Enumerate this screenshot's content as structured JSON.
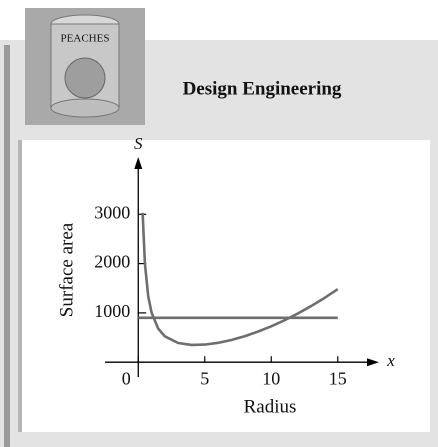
{
  "header": {
    "title": "Design Engineering",
    "can_label": "PEACHES"
  },
  "chart_data": {
    "type": "line",
    "x_label": "Radius",
    "y_label": "Surface area",
    "x_axis_name": "x",
    "y_axis_name": "S",
    "xlim": [
      -2.5,
      17.5
    ],
    "ylim": [
      -300,
      4000
    ],
    "xticks": [
      0,
      5,
      10,
      15
    ],
    "yticks": [
      1000,
      2000,
      3000
    ],
    "series": [
      {
        "color": "#6e6e6e",
        "x": [
          0.33,
          0.5,
          0.75,
          1,
          1.5,
          2,
          3,
          4,
          5,
          6,
          7,
          8,
          9,
          10,
          11,
          12,
          13,
          14,
          15
        ],
        "values": [
          3031,
          2002,
          1337,
          1006,
          681,
          525,
          390,
          351,
          357,
          393,
          451,
          527,
          620,
          728,
          851,
          988,
          1139,
          1303,
          1481
        ]
      },
      {
        "color": "#6e6e6e",
        "x": [
          0,
          15
        ],
        "values": [
          900,
          900
        ]
      }
    ]
  }
}
